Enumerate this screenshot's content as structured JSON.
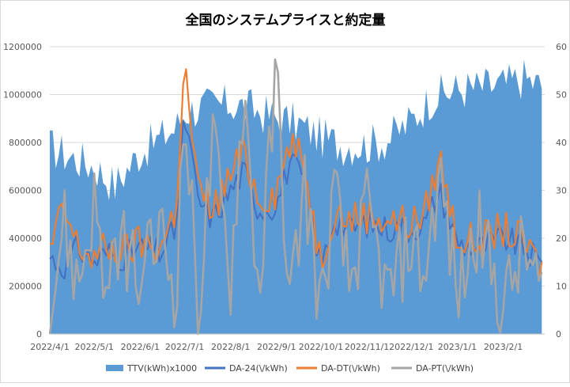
{
  "chart_data": {
    "type": "area+line",
    "title": "全国のシステムプライスと約定量",
    "x_ticks": [
      "2022/4/1",
      "2022/5/1",
      "2022/6/1",
      "2022/7/1",
      "2022/8/1",
      "2022/9/1",
      "2022/10/1",
      "2022/11/1",
      "2022/12/1",
      "2023/1/1",
      "2023/2/1"
    ],
    "left_axis": {
      "ylim": [
        0,
        1200000
      ],
      "ticks": [
        "0",
        "200000",
        "400000",
        "600000",
        "800000",
        "1000000",
        "1200000"
      ]
    },
    "right_axis": {
      "ylim": [
        0,
        60
      ],
      "ticks": [
        "0",
        "10",
        "20",
        "30",
        "40",
        "50",
        "60"
      ]
    },
    "grid": "horizontal",
    "legend_position": "bottom",
    "series": [
      {
        "name": "TTV(kWh)x1000",
        "type": "area",
        "axis": "left",
        "color": "#5b9bd5",
        "x": [
          "2022/4/1",
          "2022/4/15",
          "2022/5/1",
          "2022/5/15",
          "2022/6/1",
          "2022/6/15",
          "2022/6/25",
          "2022/7/1",
          "2022/7/15",
          "2022/8/1",
          "2022/8/15",
          "2022/9/1",
          "2022/9/15",
          "2022/10/1",
          "2022/10/15",
          "2022/11/1",
          "2022/11/15",
          "2022/12/1",
          "2022/12/15",
          "2023/1/1",
          "2023/1/15",
          "2023/2/1",
          "2023/2/15",
          "2023/2/28"
        ],
        "values": [
          780000,
          740000,
          700000,
          620000,
          760000,
          820000,
          860000,
          930000,
          950000,
          960000,
          940000,
          900000,
          880000,
          820000,
          790000,
          790000,
          810000,
          890000,
          990000,
          1020000,
          1030000,
          1040000,
          1070000,
          1030000
        ]
      },
      {
        "name": "DA-24(\\/kWh)",
        "type": "line",
        "axis": "right",
        "color": "#4472c4",
        "x": [
          "2022/4/1",
          "2022/4/10",
          "2022/4/20",
          "2022/5/1",
          "2022/5/10",
          "2022/5/20",
          "2022/6/1",
          "2022/6/15",
          "2022/6/25",
          "2022/7/1",
          "2022/7/10",
          "2022/7/20",
          "2022/8/1",
          "2022/8/10",
          "2022/8/20",
          "2022/9/1",
          "2022/9/10",
          "2022/9/20",
          "2022/10/1",
          "2022/10/10",
          "2022/10/20",
          "2022/11/1",
          "2022/11/15",
          "2022/12/1",
          "2022/12/10",
          "2022/12/20",
          "2023/1/1",
          "2023/1/15",
          "2023/2/1",
          "2023/2/15",
          "2023/2/28"
        ],
        "values": [
          16,
          14,
          18,
          15,
          17,
          16,
          18,
          17,
          22,
          46,
          28,
          24,
          30,
          34,
          26,
          27,
          36,
          32,
          14,
          24,
          22,
          23,
          22,
          22,
          23,
          30,
          19,
          18,
          20,
          18,
          14
        ]
      },
      {
        "name": "DA-DT(\\/kWh)",
        "type": "line",
        "axis": "right",
        "color": "#ed7d31",
        "x": [
          "2022/4/1",
          "2022/4/10",
          "2022/4/20",
          "2022/5/1",
          "2022/5/10",
          "2022/5/20",
          "2022/6/1",
          "2022/6/15",
          "2022/6/25",
          "2022/7/1",
          "2022/7/10",
          "2022/7/20",
          "2022/8/1",
          "2022/8/10",
          "2022/8/20",
          "2022/9/1",
          "2022/9/10",
          "2022/9/20",
          "2022/10/1",
          "2022/10/10",
          "2022/10/20",
          "2022/11/1",
          "2022/11/15",
          "2022/12/1",
          "2022/12/10",
          "2022/12/20",
          "2023/1/1",
          "2023/1/15",
          "2023/2/1",
          "2023/2/15",
          "2023/2/28"
        ],
        "values": [
          17,
          26,
          18,
          16,
          18,
          17,
          19,
          18,
          26,
          56,
          30,
          26,
          33,
          38,
          28,
          30,
          40,
          35,
          15,
          26,
          24,
          25,
          24,
          23,
          25,
          37,
          20,
          19,
          22,
          19,
          13
        ]
      },
      {
        "name": "DA-PT(\\/kWh)",
        "type": "line",
        "axis": "right",
        "color": "#a5a5a5",
        "x": [
          "2022/4/1",
          "2022/4/10",
          "2022/4/20",
          "2022/5/1",
          "2022/5/10",
          "2022/5/20",
          "2022/6/1",
          "2022/6/15",
          "2022/6/25",
          "2022/7/1",
          "2022/7/10",
          "2022/7/20",
          "2022/8/1",
          "2022/8/10",
          "2022/8/20",
          "2022/9/1",
          "2022/9/10",
          "2022/9/20",
          "2022/10/1",
          "2022/10/10",
          "2022/10/20",
          "2022/11/1",
          "2022/11/15",
          "2022/12/1",
          "2022/12/10",
          "2022/12/20",
          "2023/1/1",
          "2023/1/15",
          "2023/2/1",
          "2023/2/15",
          "2023/2/28"
        ],
        "values": [
          3,
          24,
          10,
          28,
          6,
          20,
          10,
          22,
          8,
          48,
          5,
          40,
          12,
          52,
          8,
          55,
          6,
          32,
          4,
          30,
          10,
          26,
          8,
          20,
          12,
          34,
          8,
          22,
          6,
          18,
          7
        ]
      }
    ]
  }
}
